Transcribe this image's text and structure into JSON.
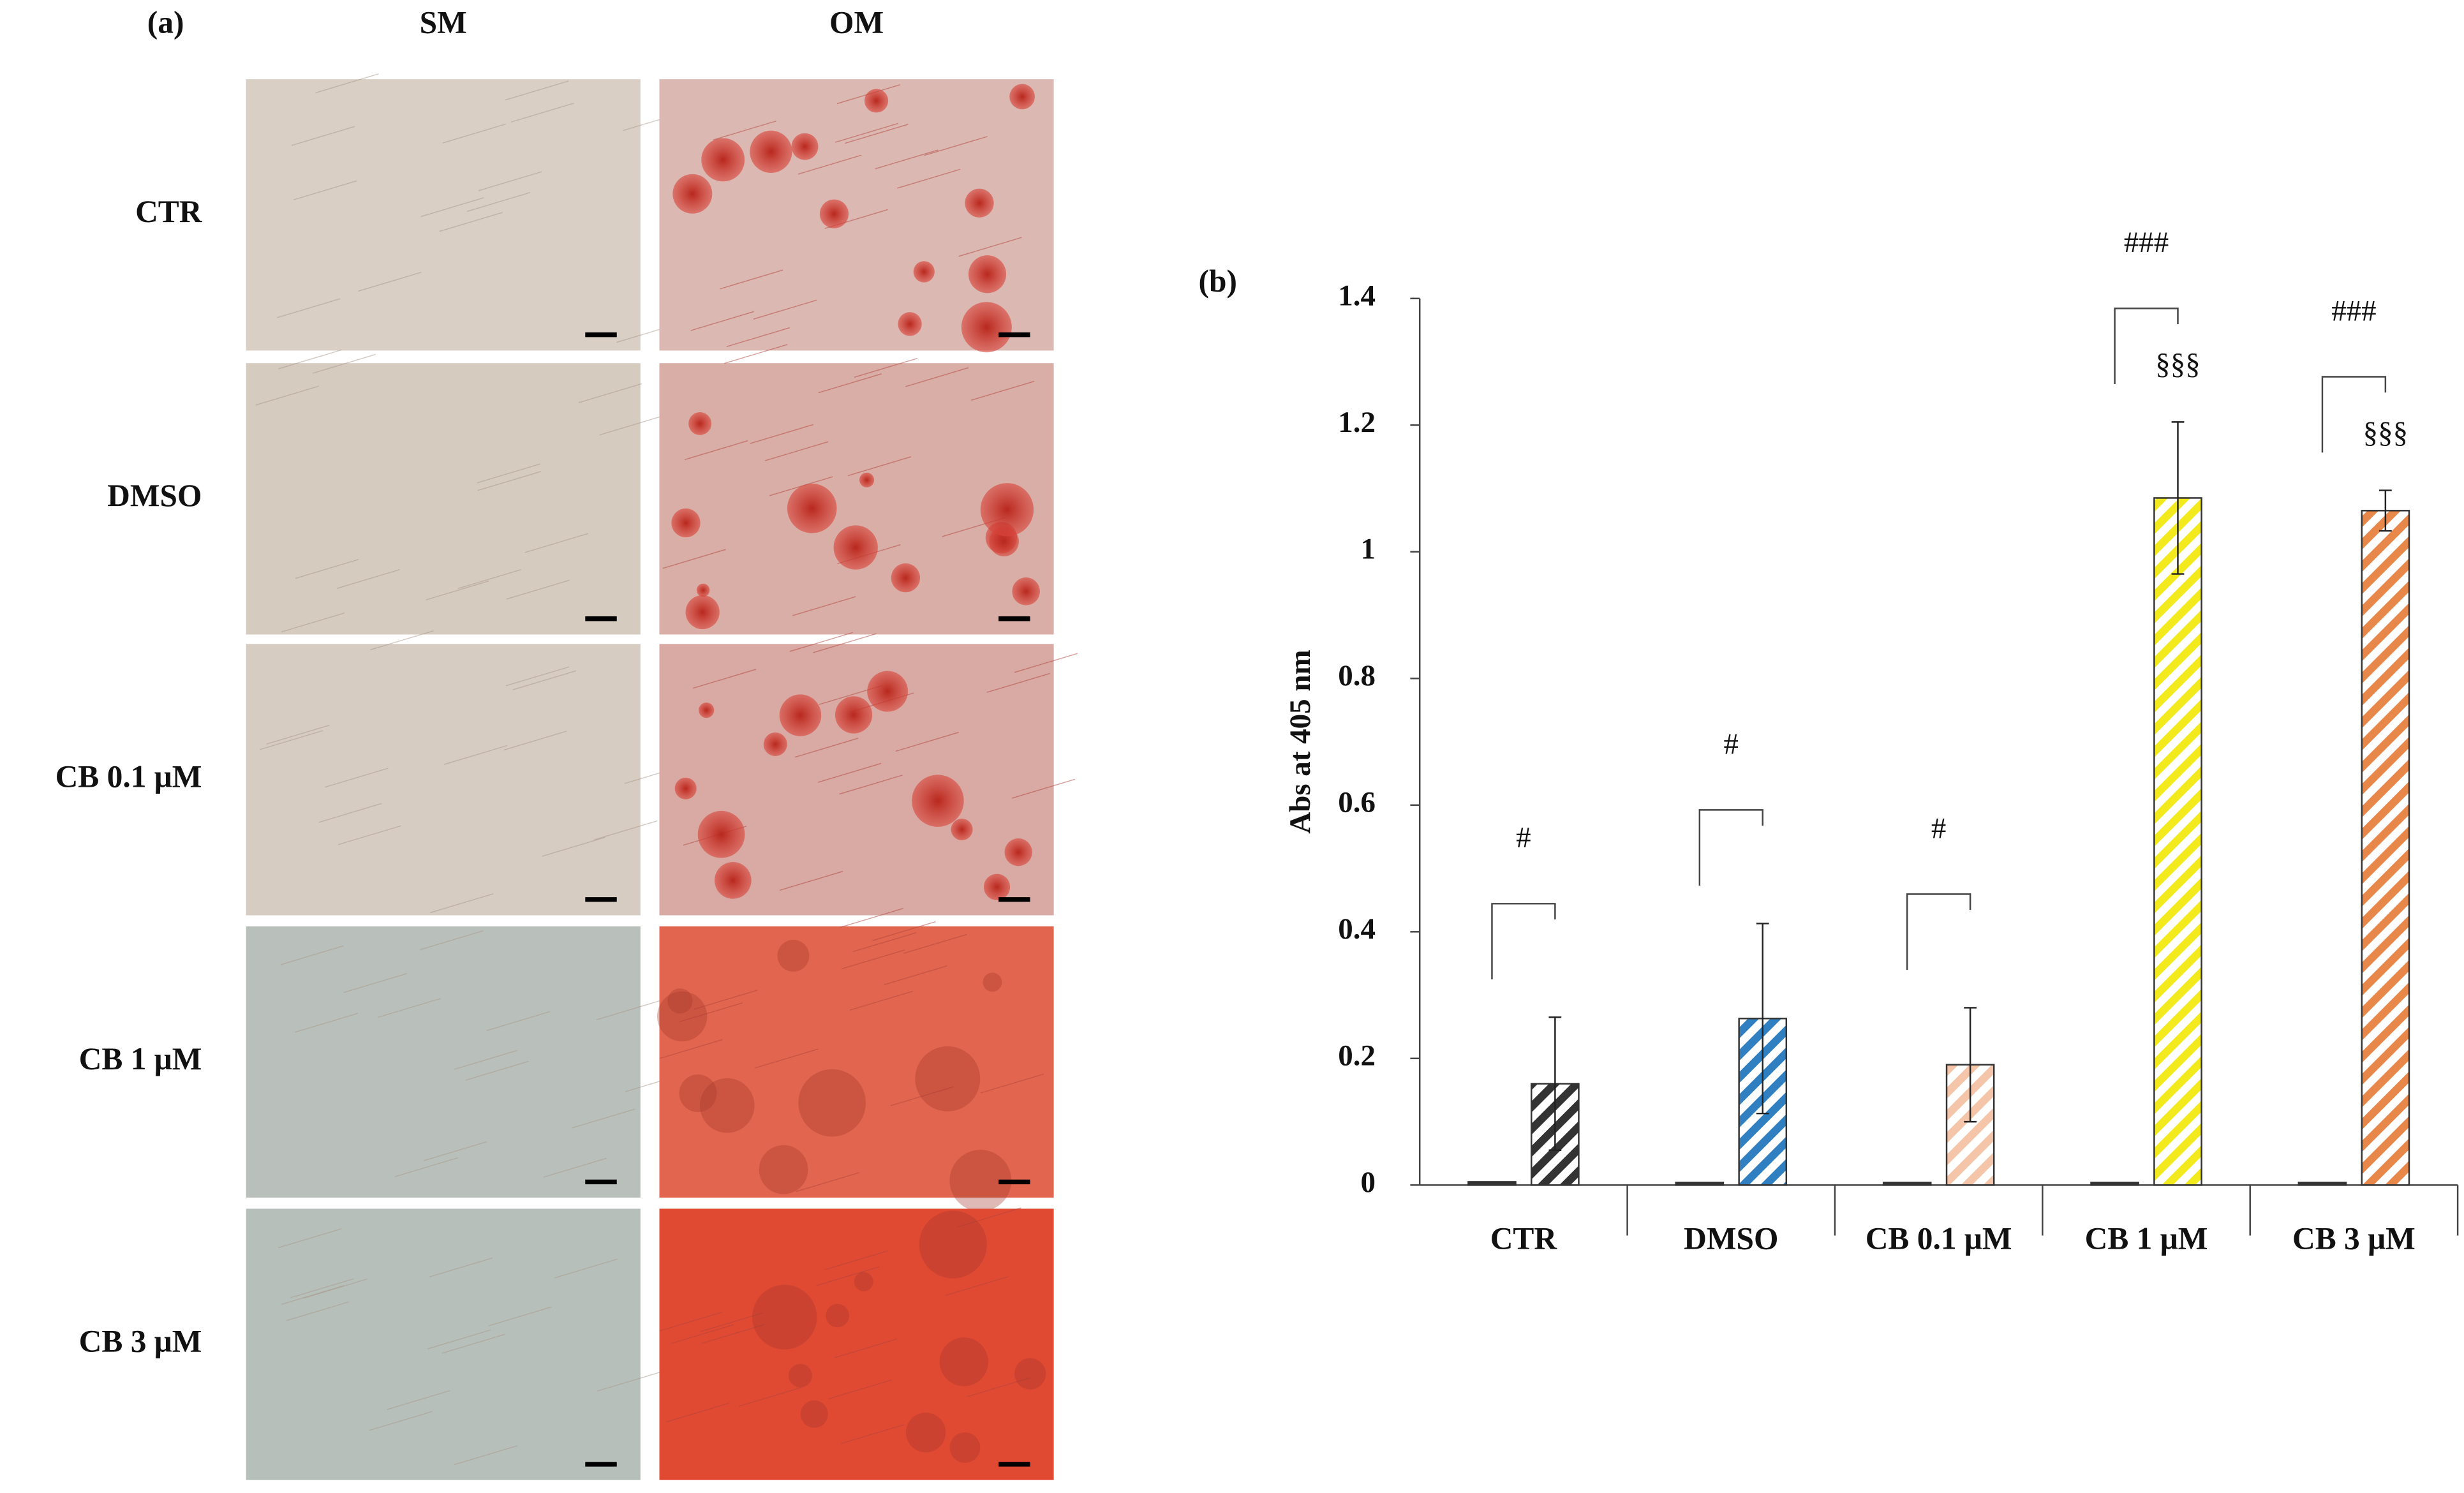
{
  "panel_a": {
    "label": "(a)",
    "columns": [
      "SM",
      "OM"
    ],
    "rows": [
      "CTR",
      "DMSO",
      "CB 0.1 μM",
      "CB 1 μM",
      "CB 3 μM"
    ]
  },
  "chart_data": {
    "type": "bar",
    "panel_label": "(b)",
    "ylabel": "Abs at 405 nm",
    "categories": [
      "CTR",
      "DMSO",
      "CB 0.1 μM",
      "CB 1 μM",
      "CB 3 μM"
    ],
    "series": [
      {
        "color": "#333333",
        "values": [
          0.005,
          0.004,
          0.004,
          0.004,
          0.004
        ]
      },
      {
        "colors": [
          "#333333",
          "#2f7fc1",
          "#f4c5a8",
          "#f2ea1c",
          "#e8874a"
        ],
        "hatch": true,
        "values": [
          0.16,
          0.263,
          0.19,
          1.085,
          1.065
        ],
        "errors": [
          0.105,
          0.15,
          0.09,
          0.12,
          0.032
        ]
      }
    ],
    "significance": [
      "#",
      "#",
      "#",
      "###",
      "###"
    ],
    "significance_2": [
      null,
      null,
      null,
      "§§§",
      "§§§"
    ],
    "ylim": [
      0,
      1.4
    ],
    "yticks": [
      0,
      0.2,
      0.4,
      0.6,
      0.8,
      1,
      1.2,
      1.4
    ],
    "grid": false
  }
}
